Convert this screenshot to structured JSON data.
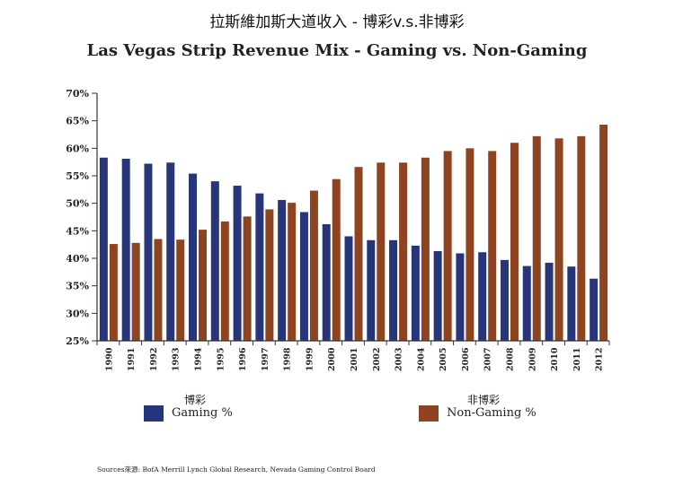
{
  "title_cn": "拉斯維加斯大道收入 - 博彩v.s.非博彩",
  "title_en": "Las Vegas Strip Revenue Mix - Gaming vs. Non-Gaming",
  "legend": {
    "gaming_header": "博彩",
    "gaming_label": "Gaming %",
    "nongaming_header": "非博彩",
    "nongaming_label": "Non-Gaming %"
  },
  "source": "Sources來源: BofA Merrill Lynch Global Research, Nevada Gaming Control Board",
  "colors": {
    "gaming": "#27367a",
    "nongaming": "#8f4421",
    "axis": "#333333"
  },
  "chart_data": {
    "type": "bar",
    "categories": [
      "1990",
      "1991",
      "1992",
      "1993",
      "1994",
      "1995",
      "1996",
      "1997",
      "1998",
      "1999",
      "2000",
      "2001",
      "2002",
      "2003",
      "2004",
      "2005",
      "2006",
      "2007",
      "2008",
      "2009",
      "2010",
      "2011",
      "2012"
    ],
    "series": [
      {
        "name": "Gaming %",
        "values": [
          58.3,
          58.1,
          57.2,
          57.4,
          55.4,
          54.0,
          53.2,
          51.8,
          50.6,
          48.4,
          46.2,
          44.0,
          43.3,
          43.3,
          42.3,
          41.3,
          40.9,
          41.1,
          39.7,
          38.6,
          39.2,
          38.5,
          36.3
        ]
      },
      {
        "name": "Non-Gaming %",
        "values": [
          42.6,
          42.8,
          43.5,
          43.4,
          45.2,
          46.7,
          47.6,
          48.9,
          50.1,
          52.3,
          54.4,
          56.6,
          57.4,
          57.4,
          58.3,
          59.5,
          60.0,
          59.5,
          61.0,
          62.2,
          61.8,
          62.2,
          64.3
        ]
      }
    ],
    "ylim": [
      25,
      70
    ],
    "yticks": [
      "25%",
      "30%",
      "35%",
      "40%",
      "45%",
      "50%",
      "55%",
      "60%",
      "65%",
      "70%"
    ],
    "ytick_values": [
      25,
      30,
      35,
      40,
      45,
      50,
      55,
      60,
      65,
      70
    ],
    "grid": false
  }
}
